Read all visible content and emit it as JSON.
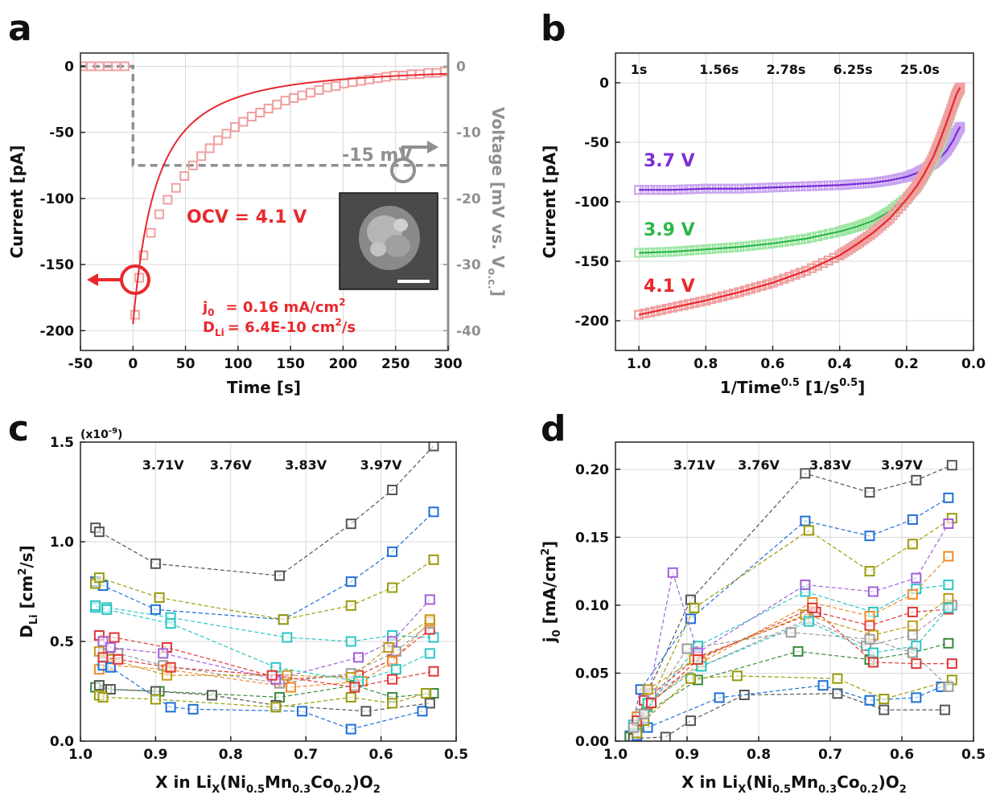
{
  "colors": {
    "red": "#e8282d",
    "red_marker": "#f0a0a0",
    "gray": "#909090",
    "purple": "#7a2ed6",
    "purple_marker": "#c9a4f0",
    "green": "#2bb84a",
    "green_marker": "#9ee6a3",
    "palette": [
      "#555555",
      "#1f6fd6",
      "#9b9b0a",
      "#2cc5c5",
      "#e03535",
      "#9a9a9a",
      "#f08a2a",
      "#a35fd8",
      "#c09a1a",
      "#3a8a3a"
    ]
  },
  "chart_data": [
    {
      "panel": "a",
      "type": "line",
      "xlabel": "Time [s]",
      "ylabel_left": "Current [pA]",
      "ylabel_right": "Voltage [mV vs. V",
      "ylabel_right_sub": "o.c.",
      "ylabel_right_close": "]",
      "xlim": [
        -50,
        300
      ],
      "ylim_left": [
        -215,
        10
      ],
      "ylim_right": [
        -43,
        2
      ],
      "xticks": [
        "-50",
        "0",
        "50",
        "100",
        "150",
        "200",
        "250",
        "300"
      ],
      "yticks_left": [
        "0",
        "-50",
        "-100",
        "-150",
        "-200"
      ],
      "yticks_right": [
        "0",
        "-10",
        "-20",
        "-30",
        "-40"
      ],
      "step_label": "-15 mV",
      "ocv_label": "OCV = 4.1 V",
      "j0_label": "j",
      "j0_sub": "0",
      "j0_value": "= 0.16 mA/cm",
      "j0_sup": "2",
      "d_label": "D",
      "d_sub": "Li",
      "d_value": "= 6.4E-10 cm",
      "d_sup": "2",
      "d_tail": "/s",
      "current_fit": {
        "I0": -195,
        "tau": 62
      },
      "current_markers": {
        "x": [
          -48,
          -40,
          -32,
          -24,
          -16,
          -8,
          2,
          6,
          10,
          17,
          25,
          33,
          41,
          49,
          57,
          65,
          73,
          81,
          89,
          97,
          105,
          113,
          121,
          129,
          137,
          145,
          153,
          161,
          169,
          177,
          185,
          193,
          201,
          209,
          217,
          225,
          233,
          241,
          249,
          257,
          265,
          273,
          281,
          289,
          297
        ],
        "y": [
          0,
          0,
          0,
          0,
          0,
          0,
          -188,
          -160,
          -143,
          -126,
          -112,
          -101,
          -92,
          -83,
          -75,
          -68,
          -62,
          -56,
          -51,
          -46,
          -42,
          -38,
          -35,
          -32,
          -29,
          -26,
          -24,
          -22,
          -20,
          -18,
          -16,
          -15,
          -13,
          -12,
          -11,
          -10,
          -9,
          -8,
          -7,
          -7,
          -6,
          -6,
          -5,
          -5,
          -4
        ]
      },
      "voltage_step": {
        "x": [
          -50,
          0,
          0,
          300
        ],
        "y": [
          0,
          0,
          -15,
          -15
        ]
      }
    },
    {
      "panel": "b",
      "type": "line",
      "xlabel": "1/Time",
      "xlabel_sup": "0.5",
      "xlabel_unit": " [1/s",
      "xlabel_unit_sup": "0.5",
      "xlabel_close": "]",
      "ylabel": "Current [pA]",
      "xlim": [
        1.07,
        0.0
      ],
      "ylim": [
        -225,
        25
      ],
      "xticks": [
        "1.0",
        "0.8",
        "0.6",
        "0.4",
        "0.2",
        "0.0"
      ],
      "yticks": [
        "0",
        "-50",
        "-100",
        "-150",
        "-200"
      ],
      "top_labels": [
        "1s",
        "1.56s",
        "2.78s",
        "6.25s",
        "25.0s"
      ],
      "top_label_x": [
        1.0,
        0.8,
        0.6,
        0.4,
        0.2
      ],
      "series": [
        {
          "name": "3.7 V",
          "color_key": "purple",
          "marker_key": "purple_marker",
          "x": [
            1.0,
            0.9,
            0.8,
            0.7,
            0.6,
            0.5,
            0.4,
            0.35,
            0.3,
            0.25,
            0.2,
            0.17,
            0.15,
            0.12,
            0.1,
            0.08,
            0.06,
            0.05,
            0.04
          ],
          "y": [
            -90,
            -90,
            -89,
            -89,
            -88,
            -87,
            -86,
            -85,
            -84,
            -82,
            -79,
            -76,
            -73,
            -68,
            -63,
            -57,
            -48,
            -42,
            -37
          ]
        },
        {
          "name": "3.9 V",
          "color_key": "green",
          "marker_key": "green_marker",
          "x": [
            1.0,
            0.9,
            0.8,
            0.7,
            0.6,
            0.5,
            0.4,
            0.35,
            0.3,
            0.25,
            0.2,
            0.17,
            0.15,
            0.12,
            0.1,
            0.08,
            0.06,
            0.05,
            0.04
          ],
          "y": [
            -143,
            -142,
            -140,
            -138,
            -135,
            -131,
            -125,
            -121,
            -116,
            -108,
            -97,
            -88,
            -79,
            -65,
            -52,
            -36,
            -18,
            -10,
            -5
          ]
        },
        {
          "name": "4.1 V",
          "color_key": "red",
          "marker_key": "red_marker",
          "x": [
            1.0,
            0.9,
            0.8,
            0.7,
            0.6,
            0.5,
            0.4,
            0.35,
            0.3,
            0.25,
            0.2,
            0.17,
            0.15,
            0.12,
            0.1,
            0.08,
            0.06,
            0.05,
            0.04
          ],
          "y": [
            -195,
            -189,
            -183,
            -176,
            -168,
            -158,
            -145,
            -136,
            -126,
            -114,
            -98,
            -87,
            -78,
            -62,
            -48,
            -33,
            -17,
            -9,
            -4
          ]
        }
      ]
    },
    {
      "panel": "c",
      "type": "scatter",
      "xlabel": "X in Li",
      "xlabel_sub": "X",
      "xlabel_tail": "(Ni",
      "xlabel_sub2": "0.5",
      "xlabel_mn": "Mn",
      "xlabel_sub3": "0.3",
      "xlabel_co": "Co",
      "xlabel_sub4": "0.2",
      "xlabel_end": ")O",
      "xlabel_sub5": "2",
      "ylabel": "D",
      "ylabel_sub": "Li",
      "ylabel_unit": " [cm",
      "ylabel_sup": "2",
      "ylabel_end": "/s]",
      "multiplier": "(x10",
      "multiplier_sup": "-9",
      "multiplier_end": ")",
      "xlim": [
        1.0,
        0.5
      ],
      "ylim": [
        0.0,
        1.5
      ],
      "xticks": [
        "1.0",
        "0.9",
        "0.8",
        "0.7",
        "0.6",
        "0.5"
      ],
      "yticks": [
        "0.0",
        "0.5",
        "1.0",
        "1.5"
      ],
      "top_labels": [
        "3.71V",
        "3.76V",
        "3.83V",
        "3.97V"
      ],
      "top_label_x": [
        0.89,
        0.8,
        0.7,
        0.6
      ],
      "series": [
        {
          "x": [
            0.98,
            0.975,
            0.9,
            0.735,
            0.64,
            0.585,
            0.53
          ],
          "y": [
            1.07,
            1.05,
            0.89,
            0.83,
            1.09,
            1.26,
            1.48
          ]
        },
        {
          "x": [
            0.98,
            0.97,
            0.9,
            0.73,
            0.64,
            0.585,
            0.53
          ],
          "y": [
            0.8,
            0.78,
            0.66,
            0.61,
            0.8,
            0.95,
            1.15
          ]
        },
        {
          "x": [
            0.98,
            0.975,
            0.895,
            0.73,
            0.64,
            0.585,
            0.53
          ],
          "y": [
            0.79,
            0.82,
            0.72,
            0.61,
            0.68,
            0.77,
            0.91
          ]
        },
        {
          "x": [
            0.98,
            0.965,
            0.88,
            0.725,
            0.64,
            0.585,
            0.53
          ],
          "y": [
            0.67,
            0.67,
            0.62,
            0.52,
            0.5,
            0.53,
            0.52
          ]
        },
        {
          "x": [
            0.975,
            0.955,
            0.885,
            0.73,
            0.63,
            0.585,
            0.535
          ],
          "y": [
            0.53,
            0.52,
            0.47,
            0.31,
            0.33,
            0.41,
            0.56
          ]
        },
        {
          "x": [
            0.97,
            0.95,
            0.89,
            0.735,
            0.64,
            0.58,
            0.535
          ],
          "y": [
            0.44,
            0.44,
            0.38,
            0.29,
            0.34,
            0.45,
            0.59
          ]
        },
        {
          "x": [
            0.975,
            0.96,
            0.885,
            0.72,
            0.625,
            0.585,
            0.535
          ],
          "y": [
            0.36,
            0.38,
            0.36,
            0.27,
            0.3,
            0.4,
            0.6
          ]
        },
        {
          "x": [
            0.97,
            0.96,
            0.89,
            0.74,
            0.63,
            0.585,
            0.535
          ],
          "y": [
            0.5,
            0.47,
            0.44,
            0.31,
            0.42,
            0.5,
            0.71
          ]
        },
        {
          "x": [
            0.975,
            0.96,
            0.885,
            0.725,
            0.64,
            0.59,
            0.535
          ],
          "y": [
            0.45,
            0.41,
            0.33,
            0.33,
            0.32,
            0.47,
            0.61
          ]
        },
        {
          "x": [
            0.98,
            0.965,
            0.895,
            0.735,
            0.635,
            0.585,
            0.53
          ],
          "y": [
            0.27,
            0.26,
            0.25,
            0.22,
            0.28,
            0.22,
            0.24
          ]
        },
        {
          "x": [
            0.975,
            0.96,
            0.9,
            0.825,
            0.74,
            0.62,
            0.535
          ],
          "y": [
            0.28,
            0.26,
            0.25,
            0.23,
            0.18,
            0.15,
            0.19
          ]
        },
        {
          "x": [
            0.97,
            0.96,
            0.88,
            0.85,
            0.705,
            0.64,
            0.545
          ],
          "y": [
            0.38,
            0.37,
            0.17,
            0.16,
            0.15,
            0.06,
            0.15
          ]
        },
        {
          "x": [
            0.975,
            0.97,
            0.9,
            0.74,
            0.64,
            0.585,
            0.54
          ],
          "y": [
            0.23,
            0.22,
            0.21,
            0.17,
            0.22,
            0.19,
            0.24
          ]
        },
        {
          "x": [
            0.98,
            0.965,
            0.88,
            0.74,
            0.63,
            0.58,
            0.535
          ],
          "y": [
            0.68,
            0.66,
            0.59,
            0.37,
            0.3,
            0.36,
            0.44
          ]
        },
        {
          "x": [
            0.97,
            0.95,
            0.88,
            0.745,
            0.635,
            0.585,
            0.53
          ],
          "y": [
            0.42,
            0.41,
            0.37,
            0.33,
            0.27,
            0.31,
            0.35
          ]
        }
      ]
    },
    {
      "panel": "d",
      "type": "scatter",
      "xlabel": "X in Li",
      "xlabel_sub": "X",
      "xlabel_tail": "(Ni",
      "xlabel_sub2": "0.5",
      "xlabel_mn": "Mn",
      "xlabel_sub3": "0.3",
      "xlabel_co": "Co",
      "xlabel_sub4": "0.2",
      "xlabel_end": ")O",
      "xlabel_sub5": "2",
      "ylabel": "j",
      "ylabel_sub": "0",
      "ylabel_unit": " [mA/cm",
      "ylabel_sup": "2",
      "ylabel_end": "]",
      "xlim": [
        1.0,
        0.5
      ],
      "ylim": [
        0.0,
        0.22
      ],
      "xticks": [
        "1.0",
        "0.9",
        "0.8",
        "0.7",
        "0.6",
        "0.5"
      ],
      "yticks": [
        "0.00",
        "0.05",
        "0.10",
        "0.15",
        "0.20"
      ],
      "top_labels": [
        "3.71V",
        "3.76V",
        "3.83V",
        "3.97V"
      ],
      "top_label_x": [
        0.89,
        0.8,
        0.7,
        0.6
      ],
      "series": [
        {
          "x": [
            0.975,
            0.96,
            0.895,
            0.735,
            0.645,
            0.58,
            0.53
          ],
          "y": [
            0.005,
            0.03,
            0.104,
            0.197,
            0.183,
            0.192,
            0.203
          ]
        },
        {
          "x": [
            0.98,
            0.965,
            0.895,
            0.735,
            0.645,
            0.585,
            0.535
          ],
          "y": [
            0.004,
            0.038,
            0.09,
            0.162,
            0.151,
            0.163,
            0.179
          ]
        },
        {
          "x": [
            0.97,
            0.96,
            0.89,
            0.73,
            0.645,
            0.585,
            0.53
          ],
          "y": [
            0.008,
            0.02,
            0.098,
            0.155,
            0.125,
            0.145,
            0.164
          ]
        },
        {
          "x": [
            0.975,
            0.955,
            0.885,
            0.735,
            0.64,
            0.58,
            0.535
          ],
          "y": [
            0.01,
            0.025,
            0.07,
            0.11,
            0.095,
            0.112,
            0.115
          ]
        },
        {
          "x": [
            0.97,
            0.96,
            0.885,
            0.72,
            0.645,
            0.585,
            0.535
          ],
          "y": [
            0.005,
            0.03,
            0.062,
            0.095,
            0.085,
            0.095,
            0.097
          ]
        },
        {
          "x": [
            0.965,
            0.95,
            0.88,
            0.73,
            0.65,
            0.585,
            0.53
          ],
          "y": [
            0.02,
            0.035,
            0.055,
            0.09,
            0.07,
            0.078,
            0.1
          ]
        },
        {
          "x": [
            0.97,
            0.955,
            0.88,
            0.725,
            0.645,
            0.585,
            0.535
          ],
          "y": [
            0.018,
            0.027,
            0.058,
            0.102,
            0.092,
            0.108,
            0.136
          ]
        },
        {
          "x": [
            0.96,
            0.92,
            0.885,
            0.735,
            0.64,
            0.58,
            0.535
          ],
          "y": [
            0.017,
            0.124,
            0.065,
            0.115,
            0.11,
            0.12,
            0.16
          ]
        },
        {
          "x": [
            0.975,
            0.955,
            0.89,
            0.735,
            0.64,
            0.585,
            0.535
          ],
          "y": [
            0.006,
            0.038,
            0.06,
            0.093,
            0.078,
            0.085,
            0.105
          ]
        },
        {
          "x": [
            0.98,
            0.96,
            0.885,
            0.745,
            0.645,
            0.585,
            0.535
          ],
          "y": [
            0.003,
            0.02,
            0.045,
            0.066,
            0.06,
            0.065,
            0.072
          ]
        },
        {
          "x": [
            0.975,
            0.93,
            0.895,
            0.82,
            0.69,
            0.625,
            0.54
          ],
          "y": [
            0.002,
            0.003,
            0.015,
            0.034,
            0.035,
            0.023,
            0.023
          ]
        },
        {
          "x": [
            0.97,
            0.955,
            0.855,
            0.71,
            0.645,
            0.58,
            0.545
          ],
          "y": [
            0.004,
            0.01,
            0.032,
            0.041,
            0.03,
            0.032,
            0.04
          ]
        },
        {
          "x": [
            0.97,
            0.96,
            0.895,
            0.83,
            0.69,
            0.625,
            0.53
          ],
          "y": [
            0.006,
            0.015,
            0.046,
            0.048,
            0.046,
            0.031,
            0.045
          ]
        },
        {
          "x": [
            0.975,
            0.955,
            0.88,
            0.73,
            0.64,
            0.58,
            0.535
          ],
          "y": [
            0.012,
            0.028,
            0.055,
            0.088,
            0.065,
            0.07,
            0.098
          ]
        },
        {
          "x": [
            0.97,
            0.95,
            0.885,
            0.725,
            0.64,
            0.58,
            0.53
          ],
          "y": [
            0.015,
            0.028,
            0.06,
            0.098,
            0.058,
            0.057,
            0.057
          ]
        },
        {
          "x": [
            0.975,
            0.96,
            0.9,
            0.755,
            0.645,
            0.585,
            0.535
          ],
          "y": [
            0.01,
            0.02,
            0.068,
            0.08,
            0.075,
            0.065,
            0.04
          ]
        }
      ]
    }
  ]
}
